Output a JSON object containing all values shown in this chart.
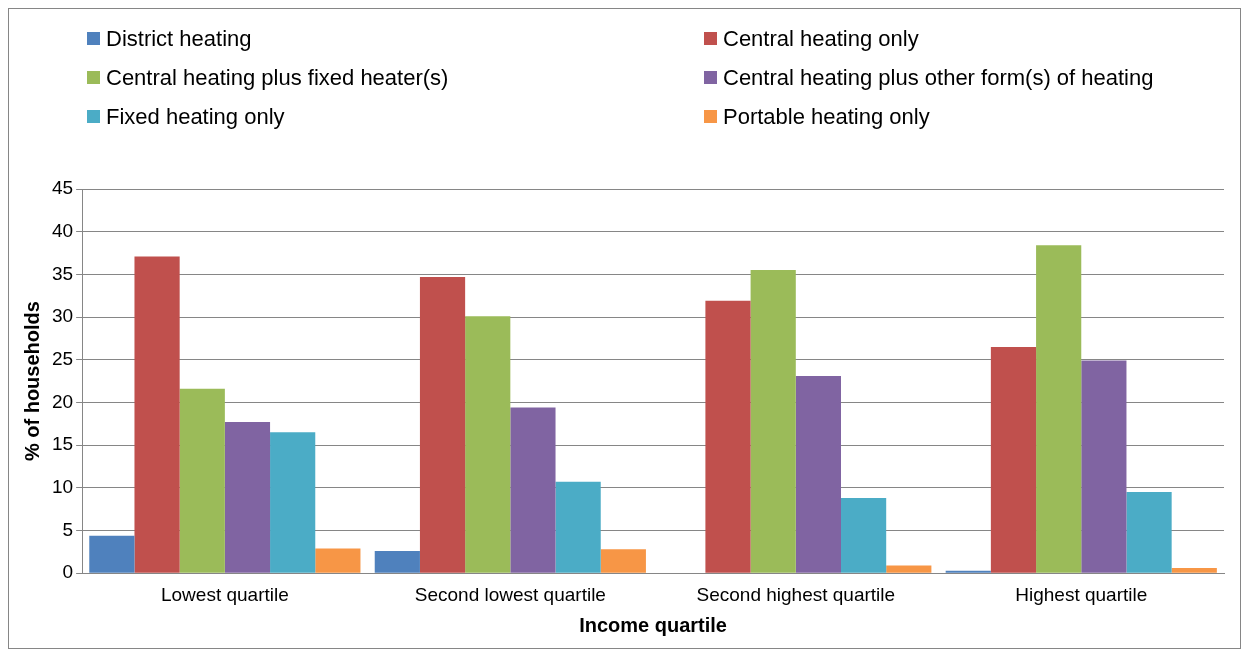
{
  "chart_data": {
    "type": "bar",
    "xlabel": "Income quartile",
    "ylabel": "% of households",
    "categories": [
      "Lowest quartile",
      "Second lowest quartile",
      "Second highest quartile",
      "Highest quartile"
    ],
    "series": [
      {
        "name": "District heating",
        "color": "#4f81bd",
        "values": [
          4.4,
          2.6,
          0,
          0.3
        ]
      },
      {
        "name": "Central heating only",
        "color": "#c0504d",
        "values": [
          37.1,
          34.7,
          31.9,
          26.5
        ]
      },
      {
        "name": "Central heating plus fixed heater(s)",
        "color": "#9bbb59",
        "values": [
          21.6,
          30.1,
          35.5,
          38.4
        ]
      },
      {
        "name": "Central heating plus other form(s) of heating",
        "color": "#8064a2",
        "values": [
          17.7,
          19.4,
          23.1,
          24.9
        ]
      },
      {
        "name": "Fixed heating only",
        "color": "#4bacc6",
        "values": [
          16.5,
          10.7,
          8.8,
          9.5
        ]
      },
      {
        "name": "Portable heating only",
        "color": "#f79646",
        "values": [
          2.9,
          2.8,
          0.9,
          0.6
        ]
      }
    ],
    "ylim": [
      0,
      45
    ],
    "yticks": [
      0,
      5,
      10,
      15,
      20,
      25,
      30,
      35,
      40,
      45
    ],
    "grid": "y",
    "legend": "top"
  }
}
